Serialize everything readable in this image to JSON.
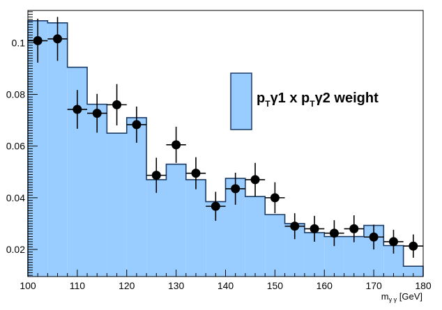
{
  "chart_data": {
    "type": "histogram",
    "xlabel_main": "m",
    "xlabel_sub": "γ γ",
    "xlabel_unit": " [GeV]",
    "xlim": [
      100,
      180
    ],
    "ylim": [
      0.0095,
      0.1125
    ],
    "x_ticks": [
      100,
      110,
      120,
      130,
      140,
      150,
      160,
      170,
      180
    ],
    "y_ticks": [
      0.02,
      0.04,
      0.06,
      0.08,
      0.1
    ],
    "y_tick_labels": [
      "0.02",
      "0.04",
      "0.06",
      "0.08",
      "0.1"
    ],
    "grid": false,
    "legend": {
      "position": "top-right",
      "p1": "p",
      "s1": "T",
      "g1": "γ1 x ",
      "p2": "p",
      "s2": "T",
      "g2": "γ2 weight"
    },
    "histogram": {
      "color": "#99ccff",
      "edges": [
        100,
        104,
        108,
        112,
        116,
        120,
        124,
        128,
        132,
        136,
        140,
        144,
        148,
        152,
        156,
        160,
        164,
        168,
        172,
        176,
        180
      ],
      "values": [
        0.1085,
        0.1077,
        0.0905,
        0.0762,
        0.065,
        0.071,
        0.047,
        0.053,
        0.047,
        0.0385,
        0.0475,
        0.0405,
        0.0335,
        0.03,
        0.0265,
        0.025,
        0.025,
        0.0293,
        0.0215,
        0.0135
      ]
    },
    "points": {
      "x": [
        102,
        106,
        110,
        114,
        118,
        122,
        126,
        130,
        134,
        138,
        142,
        146,
        150,
        154,
        158,
        162,
        166,
        170,
        174,
        178
      ],
      "y": [
        0.1008,
        0.1015,
        0.0742,
        0.0727,
        0.076,
        0.0683,
        0.0487,
        0.0605,
        0.0495,
        0.0367,
        0.0435,
        0.047,
        0.04,
        0.029,
        0.028,
        0.0263,
        0.028,
        0.0248,
        0.023,
        0.0213
      ],
      "yerr": [
        0.0085,
        0.0085,
        0.0075,
        0.0075,
        0.008,
        0.007,
        0.0068,
        0.007,
        0.0062,
        0.0056,
        0.0062,
        0.0065,
        0.006,
        0.005,
        0.005,
        0.005,
        0.0052,
        0.0048,
        0.0046,
        0.0045
      ],
      "xerr": 2
    }
  }
}
